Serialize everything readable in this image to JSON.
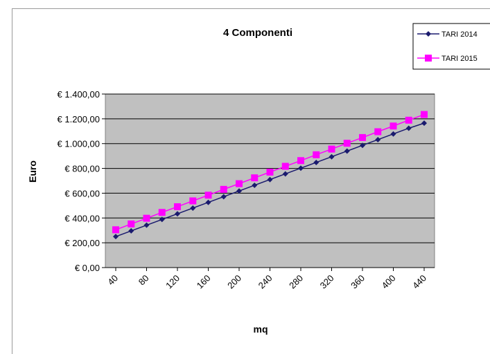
{
  "chart_data": {
    "type": "line",
    "title": "4 Componenti",
    "xlabel": "mq",
    "ylabel": "Euro",
    "x_ticks": [
      "40",
      "80",
      "120",
      "160",
      "200",
      "240",
      "280",
      "320",
      "360",
      "400",
      "440"
    ],
    "x": [
      40,
      60,
      80,
      100,
      120,
      140,
      160,
      180,
      200,
      220,
      240,
      260,
      280,
      300,
      320,
      340,
      360,
      380,
      400,
      420,
      440
    ],
    "y_ticks": [
      "€ 0,00",
      "€ 200,00",
      "€ 400,00",
      "€ 600,00",
      "€ 800,00",
      "€ 1.000,00",
      "€ 1.200,00",
      "€ 1.400,00"
    ],
    "ylim": [
      0,
      1400
    ],
    "grid": true,
    "legend_position": "top-right",
    "series": [
      {
        "name": "TARI 2014",
        "color": "#1a1a6e",
        "marker": "diamond",
        "values": [
          250,
          296,
          342,
          388,
          434,
          480,
          526,
          572,
          618,
          664,
          710,
          756,
          802,
          848,
          894,
          940,
          986,
          1032,
          1078,
          1124,
          1165
        ]
      },
      {
        "name": "TARI 2015",
        "color": "#ff00ff",
        "marker": "square",
        "values": [
          305,
          352,
          398,
          445,
          491,
          538,
          584,
          631,
          677,
          724,
          770,
          817,
          863,
          910,
          956,
          1003,
          1049,
          1096,
          1142,
          1189,
          1235
        ]
      }
    ]
  }
}
